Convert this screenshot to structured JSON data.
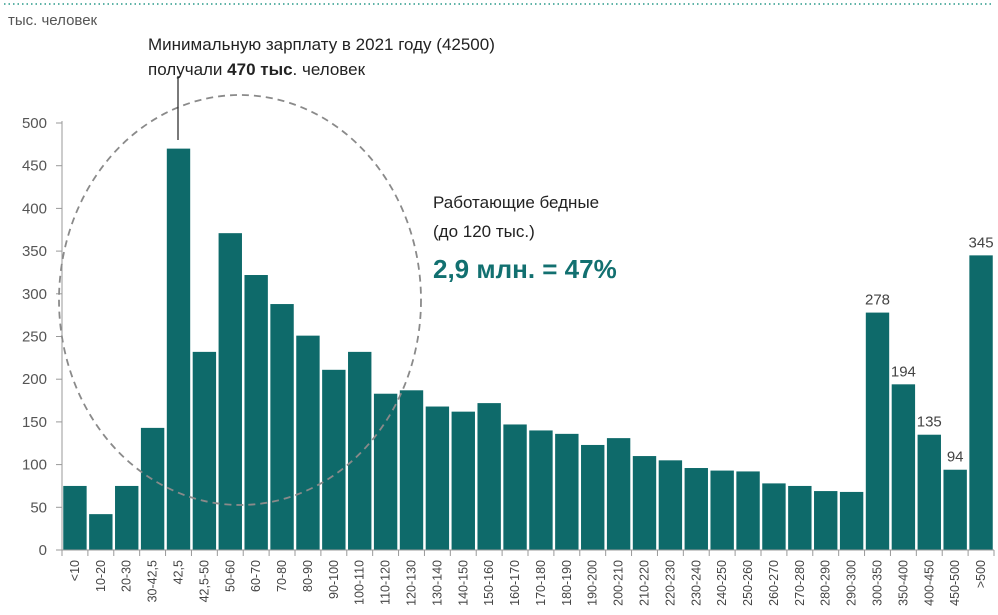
{
  "chart_data": {
    "type": "bar",
    "y_unit": "тыс. человек",
    "ylim": [
      0,
      500
    ],
    "yticks": [
      0,
      50,
      100,
      150,
      200,
      250,
      300,
      350,
      400,
      450,
      500
    ],
    "categories": [
      "<10",
      "10-20",
      "20-30",
      "30-42,5",
      "42,5",
      "42,5-50",
      "50-60",
      "60-70",
      "70-80",
      "80-90",
      "90-100",
      "100-110",
      "110-120",
      "120-130",
      "130-140",
      "140-150",
      "150-160",
      "160-170",
      "170-180",
      "180-190",
      "190-200",
      "200-210",
      "210-220",
      "220-230",
      "230-240",
      "240-250",
      "250-260",
      "260-270",
      "270-280",
      "280-290",
      "290-300",
      "300-350",
      "350-400",
      "400-450",
      "450-500",
      ">500"
    ],
    "values": [
      75,
      42,
      75,
      143,
      470,
      232,
      371,
      322,
      288,
      251,
      211,
      232,
      183,
      187,
      168,
      162,
      172,
      147,
      140,
      136,
      123,
      131,
      110,
      105,
      96,
      93,
      92,
      78,
      75,
      69,
      68,
      278,
      194,
      135,
      94,
      345
    ],
    "data_labels": {
      "31": "278",
      "32": "194",
      "33": "135",
      "34": "94",
      "35": "345"
    },
    "bar_color": "#0e6a6a",
    "grid": false,
    "annotations": {
      "min_wage_line1": "Минимальную зарплату в 2021 году (42500)",
      "min_wage_pre": "получали ",
      "min_wage_bold": "470 тыс",
      "min_wage_post": ". человек",
      "working_poor_line1": "Работающие бедные",
      "working_poor_line2": "(до 120 тыс.)",
      "working_poor_big": "2,9 млн. = 47%",
      "big_color": "#127070"
    }
  }
}
